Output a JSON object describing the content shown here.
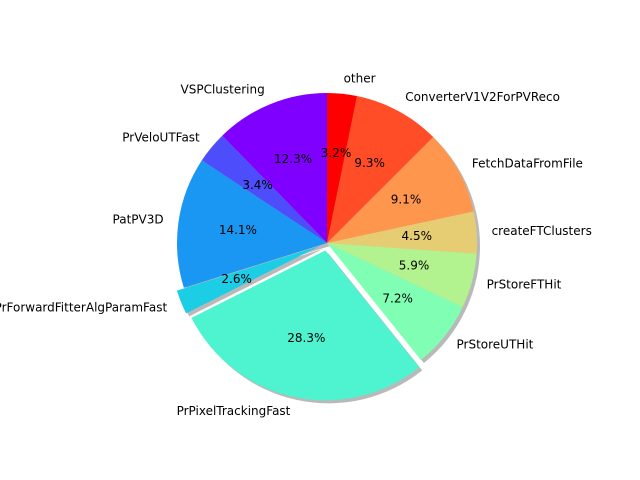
{
  "chart_data": {
    "type": "pie",
    "title": "",
    "start_angle_deg": 90,
    "direction": "counterclockwise",
    "shadow": true,
    "slices": [
      {
        "label": "VSPClustering",
        "value": 12.3,
        "pct_text": "12.3%",
        "color": "#8000ff",
        "explode": 0
      },
      {
        "label": "PrVeloUTFast",
        "value": 3.4,
        "pct_text": "3.4%",
        "color": "#4d4dfc",
        "explode": 0
      },
      {
        "label": "PatPV3D",
        "value": 14.1,
        "pct_text": "14.1%",
        "color": "#1a96f3",
        "explode": 0
      },
      {
        "label": "PrForwardFitterAlgParamFast",
        "value": 2.6,
        "pct_text": "2.6%",
        "color": "#1ccde6",
        "explode": 0.05
      },
      {
        "label": "PrPixelTrackingFast",
        "value": 28.3,
        "pct_text": "28.3%",
        "color": "#4ef4d0",
        "explode": 0.05
      },
      {
        "label": "PrStoreUTHit",
        "value": 7.2,
        "pct_text": "7.2%",
        "color": "#80ffb4",
        "explode": 0
      },
      {
        "label": "PrStoreFTHit",
        "value": 5.9,
        "pct_text": "5.9%",
        "color": "#b3f38f",
        "explode": 0
      },
      {
        "label": "createFTClusters",
        "value": 4.5,
        "pct_text": "4.5%",
        "color": "#e6cd73",
        "explode": 0
      },
      {
        "label": "FetchDataFromFile",
        "value": 9.1,
        "pct_text": "9.1%",
        "color": "#ff964e",
        "explode": 0
      },
      {
        "label": "ConverterV1V2ForPVReco",
        "value": 9.3,
        "pct_text": "9.3%",
        "color": "#ff4d27",
        "explode": 0
      },
      {
        "label": "other",
        "value": 3.2,
        "pct_text": "3.2%",
        "color": "#ff0000",
        "explode": 0
      }
    ]
  }
}
